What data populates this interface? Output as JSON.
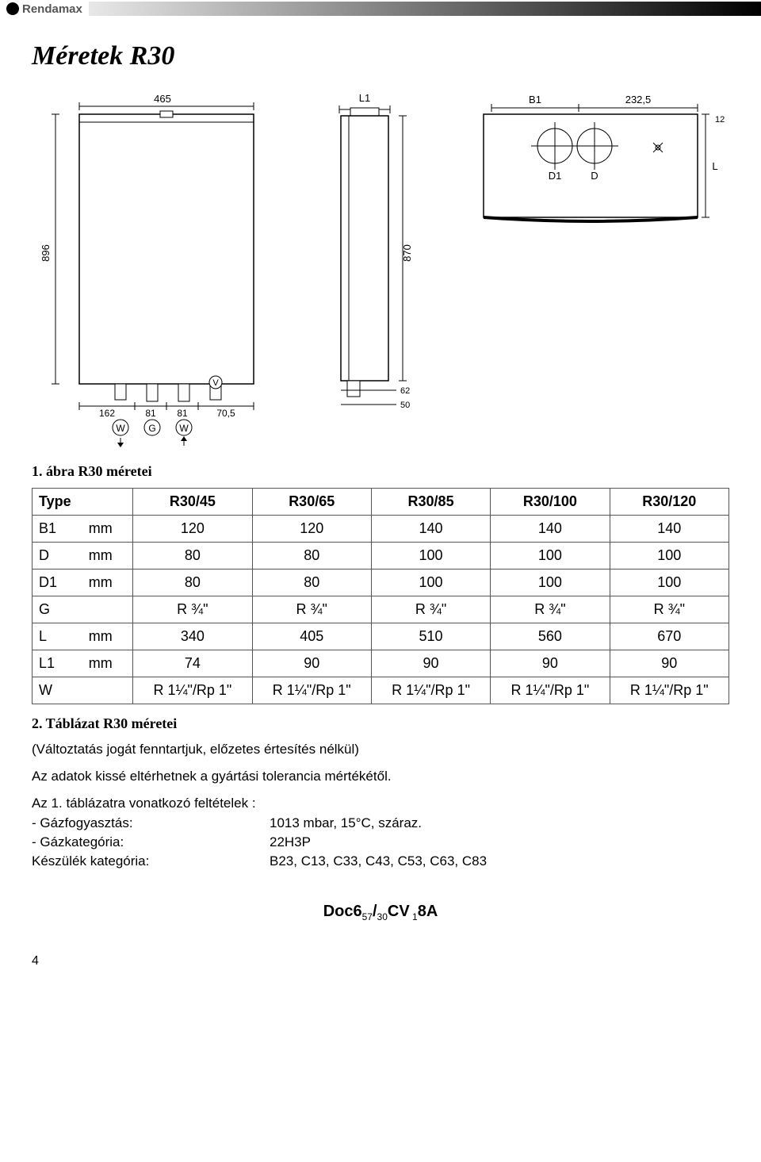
{
  "brand": "Rendamax",
  "title": "Méretek R30",
  "figure_caption": "1. ábra R30 méretei",
  "table_caption": "2. Táblázat R30 méretei",
  "diagram": {
    "front": {
      "width_label": "465",
      "height_label": "896",
      "bottom_dims": [
        "162",
        "81",
        "81",
        "70,5"
      ],
      "port_labels": [
        "W",
        "G",
        "W"
      ],
      "v_label": "V"
    },
    "side": {
      "top_label": "L1",
      "height_label": "870",
      "bottom_inner": "62",
      "bottom_outer": "50"
    },
    "top": {
      "b1_label": "B1",
      "dim_right": "232,5",
      "d_label": "D",
      "d1_label": "D1",
      "l_label": "L",
      "t_label": "12"
    }
  },
  "table": {
    "headers": [
      "Type",
      "R30/45",
      "R30/65",
      "R30/85",
      "R30/100",
      "R30/120"
    ],
    "rows": [
      {
        "label": "B1",
        "unit": "mm",
        "vals": [
          "120",
          "120",
          "140",
          "140",
          "140"
        ]
      },
      {
        "label": "D",
        "unit": "mm",
        "vals": [
          "80",
          "80",
          "100",
          "100",
          "100"
        ]
      },
      {
        "label": "D1",
        "unit": "mm",
        "vals": [
          "80",
          "80",
          "100",
          "100",
          "100"
        ]
      },
      {
        "label": "G",
        "unit": "",
        "vals": [
          "R ¾\"",
          "R ¾\"",
          "R ¾\"",
          "R ¾\"",
          "R ¾\""
        ]
      },
      {
        "label": "L",
        "unit": "mm",
        "vals": [
          "340",
          "405",
          "510",
          "560",
          "670"
        ]
      },
      {
        "label": "L1",
        "unit": "mm",
        "vals": [
          "74",
          "90",
          "90",
          "90",
          "90"
        ]
      },
      {
        "label": "W",
        "unit": "",
        "vals": [
          "R 1¼\"/Rp 1\"",
          "R 1¼\"/Rp 1\"",
          "R 1¼\"/Rp 1\"",
          "R 1¼\"/Rp 1\"",
          "R 1¼\"/Rp 1\""
        ]
      }
    ]
  },
  "notes": {
    "line1": "(Változtatás jogát fenntartjuk, előzetes értesítés nélkül)",
    "line2": "Az adatok kissé eltérhetnek a gyártási tolerancia mértékétől.",
    "line3": "Az 1. táblázatra vonatkozó feltételek :",
    "kv": [
      {
        "k": "- Gázfogyasztás:",
        "v": "1013 mbar, 15°C, száraz."
      },
      {
        "k": "- Gázkategória:",
        "v": "22H3P"
      },
      {
        "k": "Készülék kategória:",
        "v": "B23, C13, C33, C43, C53, C63, C83"
      }
    ]
  },
  "footer_code_parts": [
    "Doc6",
    "57",
    "/",
    "30",
    "CV",
    "1",
    "8A"
  ],
  "page_number": "4"
}
